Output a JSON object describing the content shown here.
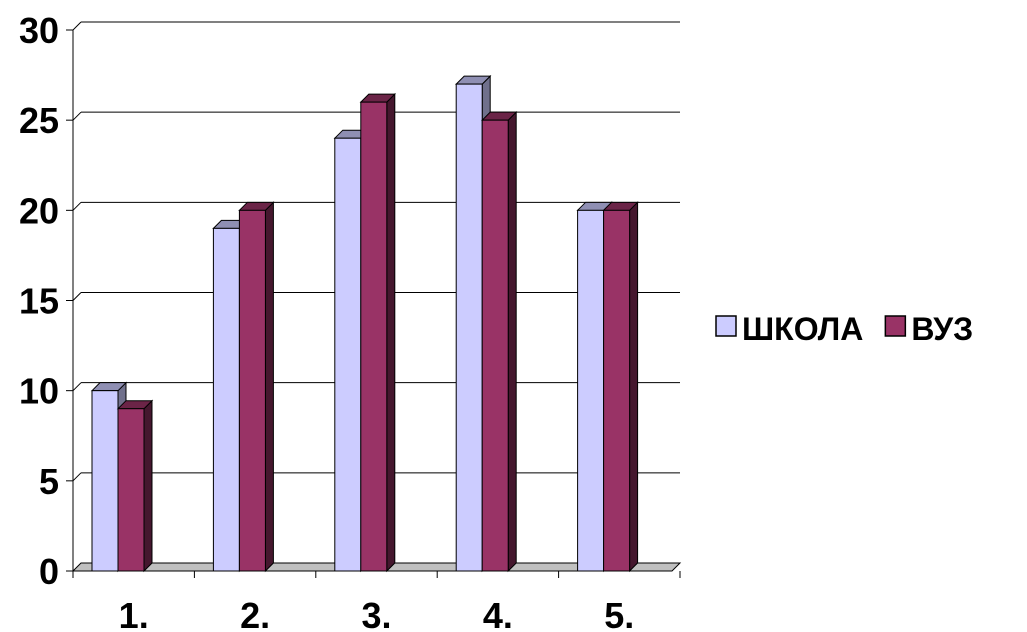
{
  "chart_data": {
    "type": "bar",
    "title": "",
    "xlabel": "",
    "ylabel": "",
    "categories": [
      "1.",
      "2.",
      "3.",
      "4.",
      "5."
    ],
    "series": [
      {
        "name": "ШКОЛА",
        "values": [
          10,
          19,
          24,
          27,
          20
        ],
        "color": "#CCCCFF"
      },
      {
        "name": "ВУЗ",
        "values": [
          9,
          20,
          26,
          25,
          20
        ],
        "color": "#993366"
      }
    ],
    "ylim": [
      0,
      30
    ],
    "yticks": [
      "0",
      "5",
      "10",
      "15",
      "20",
      "25",
      "30"
    ],
    "grid": true,
    "legend_position": "right",
    "style": "3d-clustered-column"
  }
}
